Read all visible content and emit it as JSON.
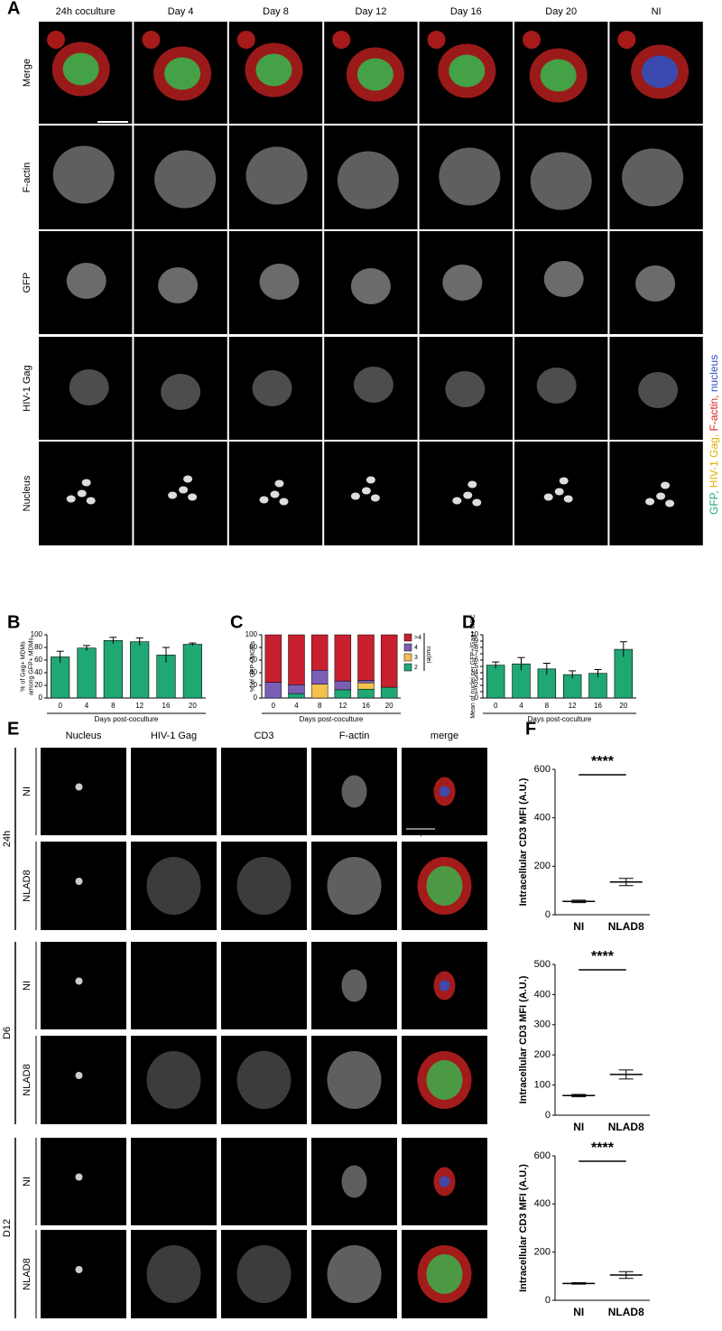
{
  "panel_labels": [
    "A",
    "B",
    "C",
    "D",
    "E",
    "F"
  ],
  "panel_a": {
    "columns": [
      "24h coculture",
      "Day 4",
      "Day 8",
      "Day 12",
      "Day 16",
      "Day 20",
      "NI"
    ],
    "rows": [
      "Merge",
      "F-actin",
      "GFP",
      "HIV-1 Gag",
      "Nucleus"
    ],
    "scale_bar": "50 µm",
    "legend": [
      {
        "text": "GFP,",
        "color": "#1fa774"
      },
      {
        "text": " HIV-1 Gag,",
        "color": "#e0b000"
      },
      {
        "text": " F-actin,",
        "color": "#e02020"
      },
      {
        "text": " nucleus",
        "color": "#3050c0"
      }
    ]
  },
  "panel_e": {
    "columns": [
      "Nucleus",
      "HIV-1 Gag",
      "CD3",
      "F-actin",
      "merge"
    ],
    "groups": [
      {
        "name": "24h",
        "rows": [
          "NI",
          "NLAD8"
        ]
      },
      {
        "name": "D6",
        "rows": [
          "NI",
          "NLAD8"
        ]
      },
      {
        "name": "D12",
        "rows": [
          "NI",
          "NLAD8"
        ]
      }
    ],
    "scale_bar": "50 µm"
  },
  "chart_data": [
    {
      "type": "bar",
      "categories": [
        "0",
        "4",
        "8",
        "12",
        "16",
        "20"
      ],
      "values": [
        65,
        79,
        91,
        89,
        68,
        85
      ],
      "errors": [
        9,
        4,
        5,
        6,
        12,
        2
      ],
      "color": "#1fa774",
      "ylim": [
        0,
        100
      ],
      "yticks": [
        0,
        20,
        40,
        60,
        80,
        100
      ],
      "ylabel": [
        "% of Gag+ MDMs",
        "among GFP+ MDMs"
      ],
      "xlabel": "Days post-coculture"
    },
    {
      "type": "stacked_bar",
      "categories": [
        "0",
        "4",
        "8",
        "12",
        "16",
        "20"
      ],
      "series": [
        {
          "name": "2",
          "color": "#1fa774",
          "values": [
            0,
            7,
            0,
            13,
            14,
            17
          ]
        },
        {
          "name": "3",
          "color": "#f2c14e",
          "values": [
            0,
            0,
            22,
            0,
            10,
            0
          ]
        },
        {
          "name": "4",
          "color": "#7b5fb5",
          "values": [
            25,
            14,
            22,
            14,
            4,
            0
          ]
        },
        {
          "name": ">4",
          "color": "#c8202f",
          "values": [
            75,
            79,
            56,
            73,
            72,
            83
          ]
        }
      ],
      "ylim": [
        0,
        100
      ],
      "yticks": [
        0,
        20,
        40,
        60,
        80,
        100
      ],
      "ylabel": [
        "% of GFP+ MGCs"
      ],
      "xlabel": "Days post-coculture",
      "legend_title": "nuclei"
    },
    {
      "type": "bar",
      "categories": [
        "0",
        "4",
        "8",
        "12",
        "16",
        "20"
      ],
      "values": [
        5.2,
        5.4,
        4.6,
        3.7,
        3.9,
        7.7
      ],
      "errors": [
        0.5,
        1,
        0.9,
        0.6,
        0.6,
        1.2
      ],
      "color": "#1fa774",
      "ylim": [
        0,
        10
      ],
      "yticks": [
        0,
        1,
        2,
        3,
        4,
        5,
        6,
        7,
        8,
        9,
        10
      ],
      "ylabel": [
        "Mean of nuclei per GFP+/Gag+ MGC"
      ],
      "xlabel": "Days post-coculture"
    },
    {
      "type": "dot",
      "categories": [
        "NI",
        "NLAD8"
      ],
      "values": [
        55,
        135
      ],
      "errors": [
        5,
        15
      ],
      "color": "#000000",
      "ylim": [
        0,
        600
      ],
      "yticks": [
        0,
        200,
        400,
        600
      ],
      "ylabel": [
        "Intracellular CD3 MFI (A.U.)"
      ],
      "annotation": "****"
    },
    {
      "type": "dot",
      "categories": [
        "NI",
        "NLAD8"
      ],
      "values": [
        65,
        135
      ],
      "errors": [
        4,
        15
      ],
      "color": "#000000",
      "ylim": [
        0,
        500
      ],
      "yticks": [
        0,
        100,
        200,
        300,
        400,
        500
      ],
      "ylabel": [
        "Intracellular CD3 MFI (A.U.)"
      ],
      "annotation": "****"
    },
    {
      "type": "dot",
      "categories": [
        "NI",
        "NLAD8"
      ],
      "values": [
        70,
        105
      ],
      "errors": [
        3,
        14
      ],
      "color": "#000000",
      "ylim": [
        0,
        600
      ],
      "yticks": [
        0,
        200,
        400,
        600
      ],
      "ylabel": [
        "Intracellular CD3 MFI (A.U.)"
      ],
      "annotation": "****"
    }
  ]
}
